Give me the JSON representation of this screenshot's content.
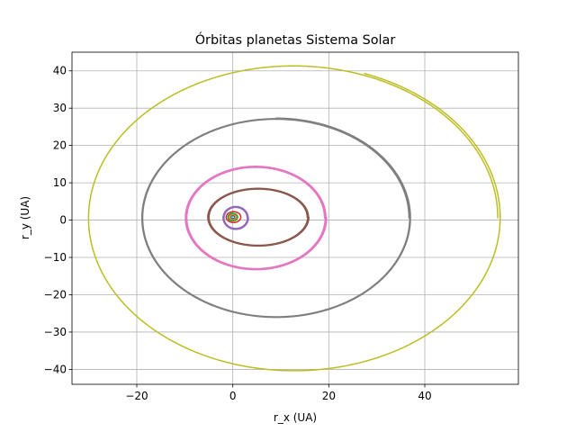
{
  "chart_data": {
    "type": "line",
    "title": "Órbitas planetas Sistema Solar",
    "xlabel": "r_x (UA)",
    "ylabel": "r_y (UA)",
    "xlim": [
      -33.5,
      59.5
    ],
    "ylim": [
      -44,
      45
    ],
    "xticks": [
      -20,
      0,
      20,
      40
    ],
    "yticks": [
      -40,
      -30,
      -20,
      -10,
      0,
      10,
      20,
      30,
      40
    ],
    "xtick_labels": [
      "−20",
      "0",
      "20",
      "40"
    ],
    "ytick_labels": [
      "−40",
      "−30",
      "−20",
      "−10",
      "0",
      "10",
      "20",
      "30",
      "40"
    ],
    "grid": true,
    "series": [
      {
        "color": "#1f77b4",
        "cx": 0.0,
        "cy": 0.8,
        "a": 0.39,
        "b": 0.38,
        "start_deg": 0,
        "sweep_deg": 720,
        "spiral": 0.0
      },
      {
        "color": "#ff7f0e",
        "cx": 0.0,
        "cy": 0.8,
        "a": 0.72,
        "b": 0.72,
        "start_deg": 0,
        "sweep_deg": 720,
        "spiral": 0.0
      },
      {
        "color": "#2ca02c",
        "cx": 0.0,
        "cy": 0.8,
        "a": 1.0,
        "b": 1.0,
        "start_deg": 0,
        "sweep_deg": 720,
        "spiral": 0.0
      },
      {
        "color": "#d62728",
        "cx": 0.15,
        "cy": 0.8,
        "a": 1.52,
        "b": 1.45,
        "start_deg": 0,
        "sweep_deg": 720,
        "spiral": 0.0
      },
      {
        "color": "#9467bd",
        "cx": 0.6,
        "cy": 0.6,
        "a": 2.4,
        "b": 2.8,
        "start_deg": 0,
        "sweep_deg": 1800,
        "spiral": 0.25
      },
      {
        "color": "#8c564b",
        "cx": 5.3,
        "cy": 0.8,
        "a": 10.2,
        "b": 7.5,
        "start_deg": 0,
        "sweep_deg": 1440,
        "spiral": 0.35
      },
      {
        "color": "#e377c2",
        "cx": 4.8,
        "cy": 0.6,
        "a": 14.3,
        "b": 13.5,
        "start_deg": 0,
        "sweep_deg": 1080,
        "spiral": 0.45
      },
      {
        "color": "#7f7f7f",
        "cx": 9.0,
        "cy": 0.6,
        "a": 27.7,
        "b": 26.4,
        "start_deg": 0,
        "sweep_deg": 810,
        "spiral": 0.35
      },
      {
        "color": "#bcbd22",
        "cx": 12.7,
        "cy": 0.6,
        "a": 42.5,
        "b": 40.6,
        "start_deg": 0,
        "sweep_deg": 430,
        "spiral": 0.6
      }
    ]
  }
}
